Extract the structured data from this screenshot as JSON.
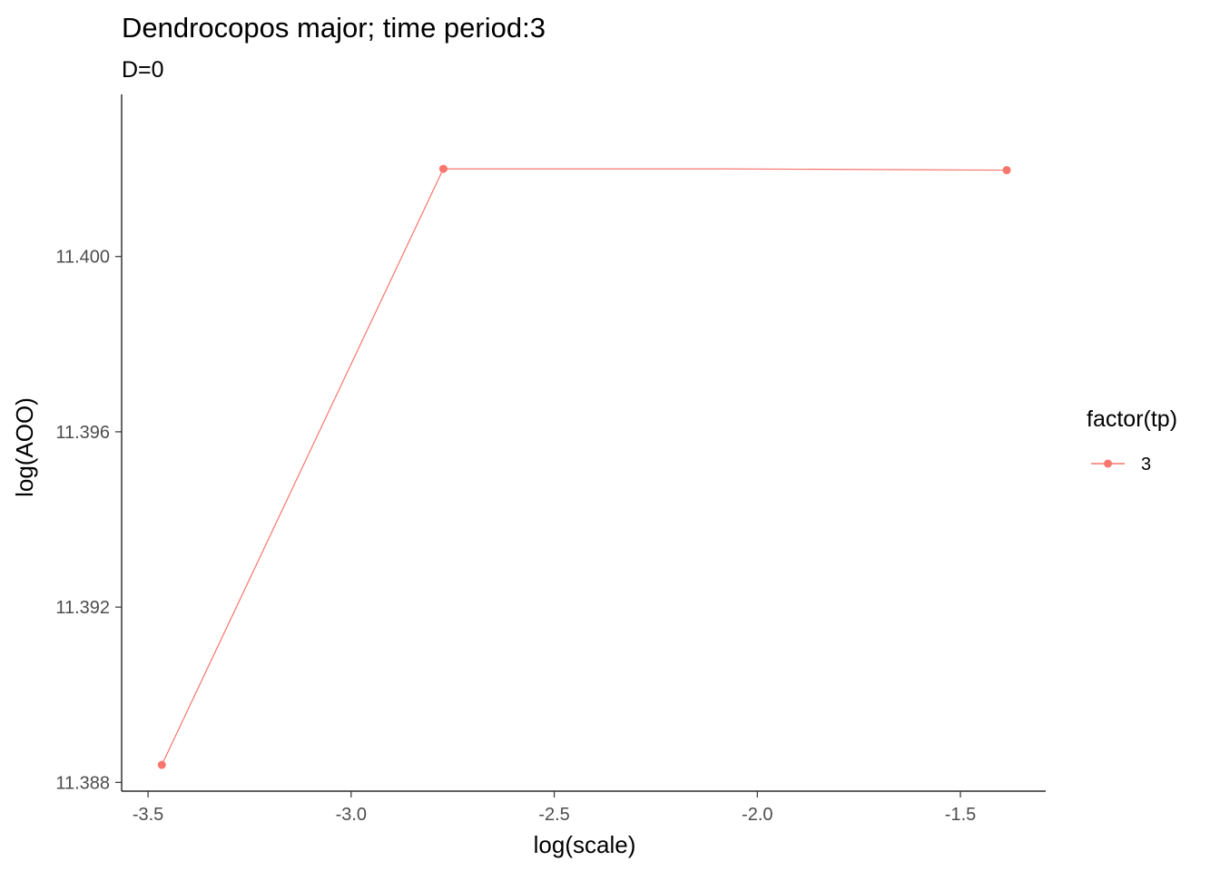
{
  "chart_data": {
    "type": "line",
    "title": "Dendrocopos major; time period:3",
    "subtitle": "D=0",
    "xlabel": "log(scale)",
    "ylabel": "log(AOO)",
    "xlim": [
      -3.565,
      -1.29
    ],
    "ylim": [
      11.3878,
      11.4037
    ],
    "x_ticks": [
      -3.5,
      -3.0,
      -2.5,
      -2.0,
      -1.5
    ],
    "x_tick_labels": [
      "-3.5",
      "-3.0",
      "-2.5",
      "-2.0",
      "-1.5"
    ],
    "y_ticks": [
      11.388,
      11.392,
      11.396,
      11.4
    ],
    "y_tick_labels": [
      "11.388",
      "11.392",
      "11.396",
      "11.400"
    ],
    "grid": false,
    "legend": {
      "title": "factor(tp)",
      "placement": "right",
      "entries": [
        "3"
      ]
    },
    "series": [
      {
        "name": "3",
        "color": "#F8766D",
        "x": [
          -3.466,
          -2.773,
          -2.079,
          -1.386
        ],
        "y": [
          11.3884,
          11.402,
          11.402,
          11.40197
        ],
        "points_shown": [
          true,
          true,
          false,
          true
        ]
      }
    ]
  }
}
